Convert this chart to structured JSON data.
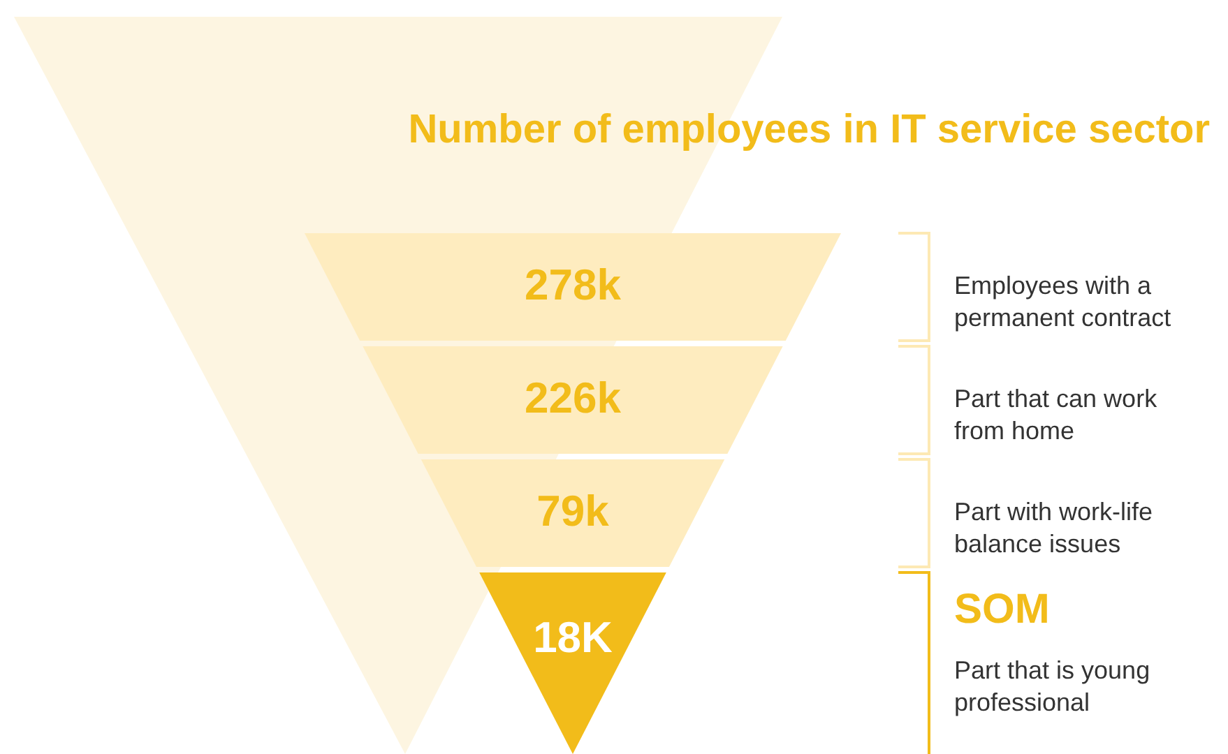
{
  "chart_data": {
    "type": "other",
    "title": "Number of employees in IT service sector",
    "categories": [
      "Employees with a permanent contract",
      "Part that can work from home",
      "Part with work-life balance issues",
      "Part that is young professional"
    ],
    "values": [
      278,
      226,
      79,
      18
    ],
    "value_labels": [
      "278k",
      "226k",
      "79k",
      "18K"
    ],
    "colors": [
      "#feecbf",
      "#feecbf",
      "#feecbf",
      "#f2bc1a"
    ],
    "annotations": [
      "SOM"
    ]
  }
}
